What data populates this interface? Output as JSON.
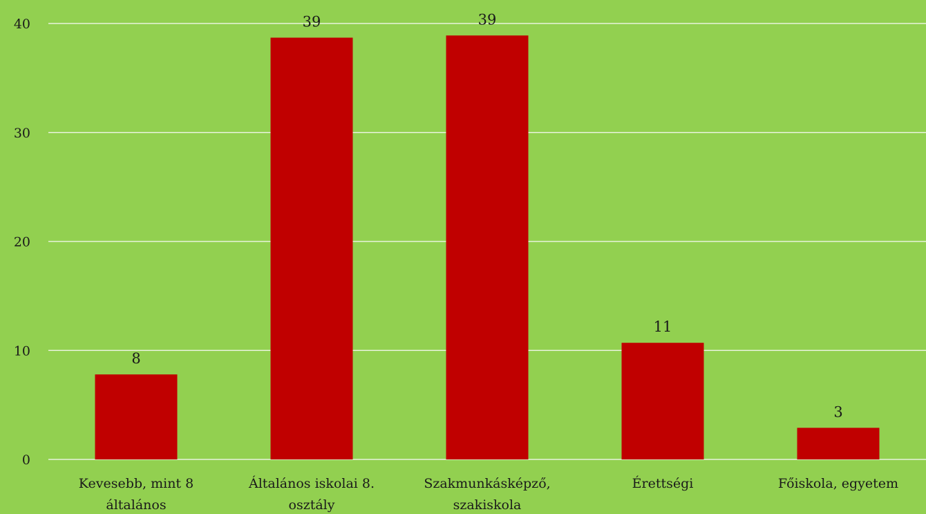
{
  "chart_data": {
    "type": "bar",
    "categories": [
      [
        "Kevesebb, mint 8",
        "általános"
      ],
      [
        "Általános iskolai 8.",
        "osztály"
      ],
      [
        "Szakmunkásképző,",
        "szakiskola"
      ],
      [
        "Érettségi"
      ],
      [
        "Főiskola, egyetem"
      ]
    ],
    "values": [
      7.8,
      38.7,
      38.9,
      10.7,
      2.9
    ],
    "data_labels": [
      "8",
      "39",
      "39",
      "11",
      "3"
    ],
    "y_ticks": [
      "0",
      "10",
      "20",
      "30",
      "40"
    ],
    "ylim": [
      0,
      40
    ],
    "grid": true,
    "title": "",
    "xlabel": "",
    "ylabel": "",
    "colors": {
      "bar": "#c00000",
      "background": "#92d050",
      "grid": "#e8f3dc"
    }
  }
}
